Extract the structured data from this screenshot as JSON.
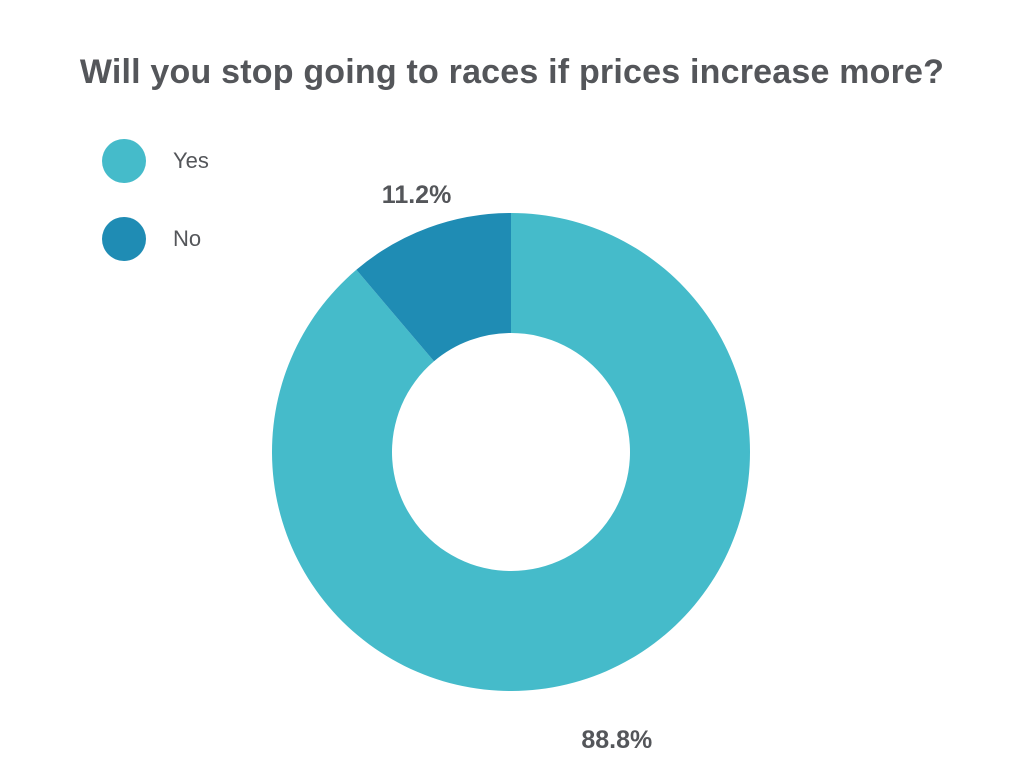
{
  "title": "Will you stop going to races if prices increase more?",
  "legend": {
    "items": [
      {
        "label": "Yes",
        "color": "#45BBCA"
      },
      {
        "label": "No",
        "color": "#1F8CB4"
      }
    ]
  },
  "chart_data": {
    "type": "pie",
    "subtype": "donut",
    "title": "Will you stop going to races if prices increase more?",
    "categories": [
      "Yes",
      "No"
    ],
    "values": [
      88.8,
      11.2
    ],
    "value_labels": [
      "88.8%",
      "11.2%"
    ],
    "unit": "%",
    "colors": [
      "#45BBCA",
      "#1F8CB4"
    ],
    "start_angle_deg": -90,
    "direction": "clockwise",
    "legend_position": "top-left",
    "background": "#FFFFFF",
    "text_color": "#54565A"
  }
}
